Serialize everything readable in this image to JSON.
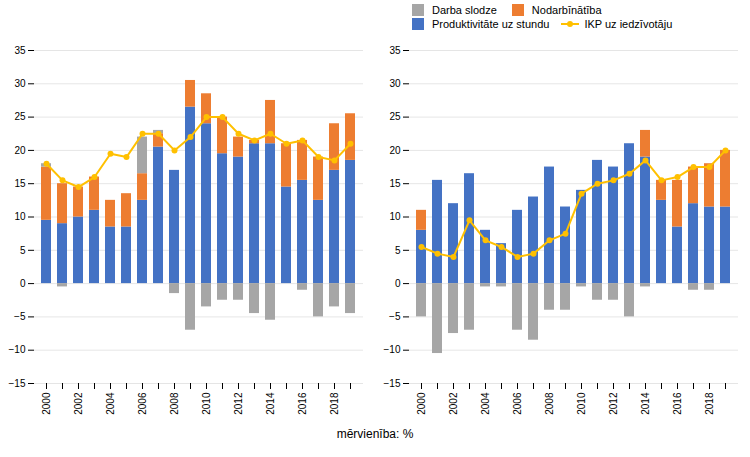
{
  "chart_data": [
    {
      "type": "bar",
      "stacked": true,
      "grid": true,
      "xlabel": "mērvienība: %",
      "categories": [
        "2000",
        null,
        "2002",
        null,
        "2004",
        null,
        "2006",
        null,
        "2008",
        null,
        "2010",
        null,
        "2012",
        null,
        "2014",
        null,
        "2016",
        null,
        "2018",
        null
      ],
      "series": [
        {
          "name": "Darba slodze",
          "color": "#a6a6a6",
          "values": [
            0.5,
            -0.5,
            0.0,
            0.0,
            0.0,
            0.0,
            5.5,
            0.5,
            -1.5,
            -7.0,
            -3.5,
            -2.5,
            -2.5,
            -4.5,
            -5.5,
            0.0,
            -1.0,
            -5.0,
            -3.5,
            -4.5
          ]
        },
        {
          "name": "Nodarbīnātība",
          "color": "#ed7d31",
          "values": [
            8.0,
            6.0,
            4.5,
            5.0,
            4.0,
            5.0,
            4.0,
            2.0,
            0.0,
            4.0,
            4.5,
            5.5,
            3.0,
            0.5,
            6.5,
            6.5,
            6.0,
            6.5,
            7.0,
            7.0
          ]
        },
        {
          "name": "Produktivitāte uz stundu",
          "color": "#4472c4",
          "values": [
            9.5,
            9.0,
            10.0,
            11.0,
            8.5,
            8.5,
            12.5,
            20.5,
            17.0,
            26.5,
            24.0,
            19.5,
            19.0,
            21.0,
            21.0,
            14.5,
            15.5,
            12.5,
            17.0,
            18.5
          ]
        },
        {
          "name": "IKP uz iedzīvotāju",
          "type": "line",
          "marker": "circle",
          "color": "#ffc000",
          "values": [
            18.0,
            15.5,
            14.5,
            16.0,
            19.5,
            19.0,
            22.5,
            22.5,
            20.0,
            22.0,
            25.0,
            25.0,
            22.5,
            21.5,
            22.5,
            21.0,
            21.5,
            19.0,
            18.5,
            21.0
          ]
        }
      ],
      "ylim": [
        -15,
        35
      ],
      "yticks": [
        -15,
        -10,
        -5,
        0,
        5,
        10,
        15,
        20,
        25,
        30,
        35
      ]
    },
    {
      "type": "bar",
      "stacked": true,
      "grid": true,
      "legend": "upper left",
      "categories": [
        "2000",
        null,
        "2002",
        null,
        "2004",
        null,
        "2006",
        null,
        "2008",
        null,
        "2010",
        null,
        "2012",
        null,
        "2014",
        null,
        "2016",
        null,
        "2018",
        null
      ],
      "series": [
        {
          "name": "Darba slodze",
          "color": "#a6a6a6",
          "values": [
            -5.0,
            -10.5,
            -7.5,
            -7.0,
            -0.5,
            -0.5,
            -7.0,
            -8.5,
            -4.0,
            -4.0,
            -0.5,
            -2.5,
            -2.5,
            -5.0,
            -0.5,
            0.0,
            0.0,
            -1.0,
            -1.0,
            0.0
          ]
        },
        {
          "name": "Nodarbīnātība",
          "color": "#ed7d31",
          "values": [
            3.0,
            0.0,
            0.0,
            0.0,
            0.0,
            0.0,
            0.0,
            0.0,
            0.0,
            0.0,
            0.0,
            0.0,
            0.0,
            0.0,
            4.0,
            3.0,
            7.0,
            5.5,
            6.5,
            8.5
          ]
        },
        {
          "name": "Produktivitāte uz stundu",
          "color": "#4472c4",
          "values": [
            8.0,
            15.5,
            12.0,
            16.5,
            8.0,
            6.0,
            11.0,
            13.0,
            17.5,
            11.5,
            14.0,
            18.5,
            17.5,
            21.0,
            19.0,
            12.5,
            8.5,
            12.0,
            11.5,
            11.5
          ]
        },
        {
          "name": "IKP uz iedzīvotāju",
          "type": "line",
          "marker": "circle",
          "color": "#ffc000",
          "values": [
            5.5,
            4.5,
            4.0,
            9.5,
            6.5,
            5.5,
            4.0,
            4.5,
            6.5,
            7.5,
            13.5,
            15.0,
            15.5,
            16.5,
            18.5,
            15.5,
            16.0,
            17.5,
            17.5,
            20.0
          ]
        }
      ],
      "ylim": [
        -15,
        35
      ],
      "yticks": [
        -15,
        -10,
        -5,
        0,
        5,
        10,
        15,
        20,
        25,
        30,
        35
      ]
    }
  ]
}
